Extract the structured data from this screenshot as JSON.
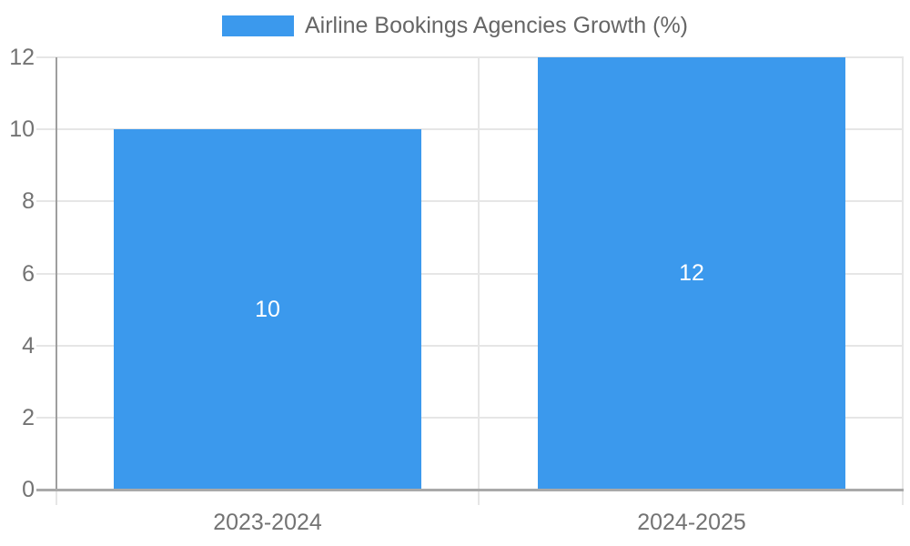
{
  "chart_data": {
    "type": "bar",
    "legend": "Airline Bookings Agencies Growth (%)",
    "legend_position": "top-center",
    "categories": [
      "2023-2024",
      "2024-2025"
    ],
    "values": [
      10,
      12
    ],
    "data_labels": [
      "10",
      "12"
    ],
    "xlabel": "",
    "ylabel": "",
    "ylim": [
      0,
      12
    ],
    "yticks": [
      0,
      2,
      4,
      6,
      8,
      10,
      12
    ],
    "grid": true
  },
  "colors": {
    "bar": "#3b99ed",
    "bar_label": "#ffffff",
    "grid": "#e6e6e6",
    "axis_y": "#9e9e9e",
    "axis_x": "#a9a9a9",
    "tick_text": "#737373",
    "legend_text": "#666666",
    "background": "#ffffff"
  }
}
